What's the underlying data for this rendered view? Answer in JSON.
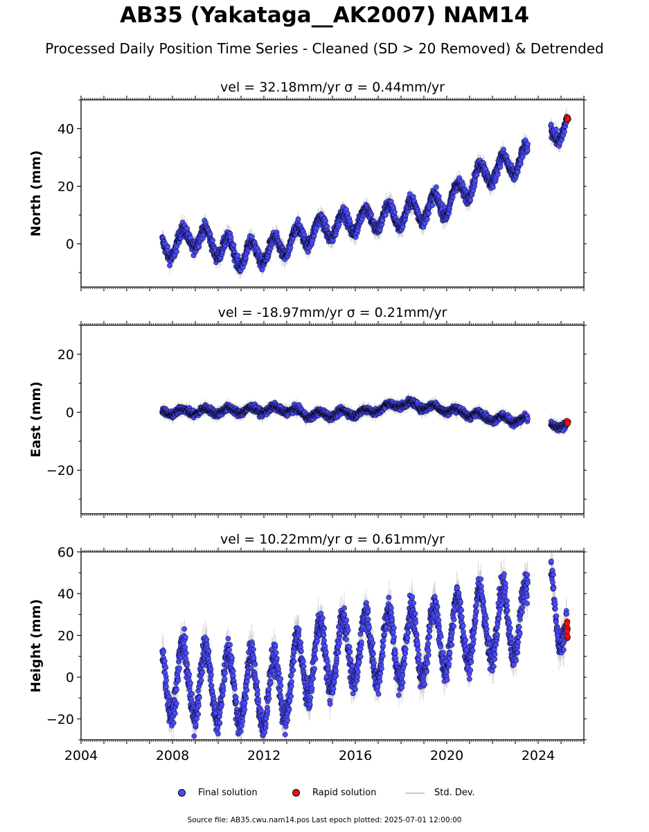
{
  "title": "AB35 (Yakataga__AK2007) NAM14",
  "subtitle": "Processed Daily Position Time Series - Cleaned (SD > 20 Removed) & Detrended",
  "footer": "Source file: AB35.cwu.nam14.pos  Last epoch plotted: 2025-07-01 12:00:00",
  "legend": {
    "final_label": "Final solution",
    "rapid_label": "Rapid solution",
    "std_label": "Std. Dev."
  },
  "colors": {
    "final": "#4a4aff",
    "rapid": "#ee1111",
    "std": "#bbbbbb",
    "outline": "#000000"
  },
  "chart_data": [
    {
      "type": "scatter",
      "panel": "north",
      "title": "vel = 32.18mm/yr   σ = 0.44mm/yr",
      "ylabel": "North (mm)",
      "xlim": [
        2004.0,
        2026.0
      ],
      "ylim": [
        -15,
        50
      ],
      "yticks": [
        0,
        20,
        40
      ],
      "x_range_final": [
        2007.55,
        2025.25
      ],
      "gap": [
        2023.55,
        2024.55
      ],
      "trend": [
        [
          2007.6,
          -2
        ],
        [
          2009.0,
          3
        ],
        [
          2011.0,
          -4
        ],
        [
          2012.5,
          -2
        ],
        [
          2014.0,
          4
        ],
        [
          2016.0,
          8
        ],
        [
          2018.0,
          10
        ],
        [
          2020.0,
          14
        ],
        [
          2021.5,
          24
        ],
        [
          2023.0,
          28
        ],
        [
          2023.5,
          30
        ],
        [
          2024.6,
          37
        ],
        [
          2025.3,
          43
        ]
      ],
      "seasonal_amp": 4,
      "rapid": {
        "x": [
          2025.25,
          2025.32
        ],
        "y": [
          43,
          44
        ]
      }
    },
    {
      "type": "scatter",
      "panel": "east",
      "title": "vel = -18.97mm/yr   σ = 0.21mm/yr",
      "ylabel": "East (mm)",
      "xlim": [
        2004.0,
        2026.0
      ],
      "ylim": [
        -35,
        30
      ],
      "yticks": [
        -20,
        0,
        20
      ],
      "x_range_final": [
        2007.55,
        2025.25
      ],
      "gap": [
        2023.55,
        2024.55
      ],
      "trend": [
        [
          2007.6,
          0
        ],
        [
          2013.0,
          1
        ],
        [
          2014.0,
          -1
        ],
        [
          2016.5,
          0
        ],
        [
          2018.0,
          3
        ],
        [
          2020.0,
          1
        ],
        [
          2022.0,
          -2
        ],
        [
          2023.5,
          -3
        ],
        [
          2024.6,
          -5
        ],
        [
          2025.3,
          -4
        ]
      ],
      "seasonal_amp": 1,
      "rapid": {
        "x": [
          2025.25,
          2025.32
        ],
        "y": [
          -4,
          -3
        ]
      }
    },
    {
      "type": "scatter",
      "panel": "height",
      "title": "vel = 10.22mm/yr   σ = 0.61mm/yr",
      "ylabel": "Height (mm)",
      "xlim": [
        2004.0,
        2026.0
      ],
      "ylim": [
        -30,
        60
      ],
      "yticks": [
        -20,
        0,
        20,
        40,
        60
      ],
      "xticks": [
        2004,
        2008,
        2012,
        2016,
        2020,
        2024
      ],
      "x_range_final": [
        2007.55,
        2025.25
      ],
      "gap": [
        2023.55,
        2024.55
      ],
      "trend": [
        [
          2007.6,
          0
        ],
        [
          2012.5,
          -8
        ],
        [
          2014.0,
          8
        ],
        [
          2016.0,
          14
        ],
        [
          2019.0,
          16
        ],
        [
          2021.0,
          24
        ],
        [
          2023.5,
          28
        ],
        [
          2024.6,
          40
        ],
        [
          2025.3,
          22
        ]
      ],
      "seasonal_amp": 17,
      "rapid": {
        "x": [
          2025.25,
          2025.32
        ],
        "y": [
          18,
          27
        ]
      }
    }
  ]
}
